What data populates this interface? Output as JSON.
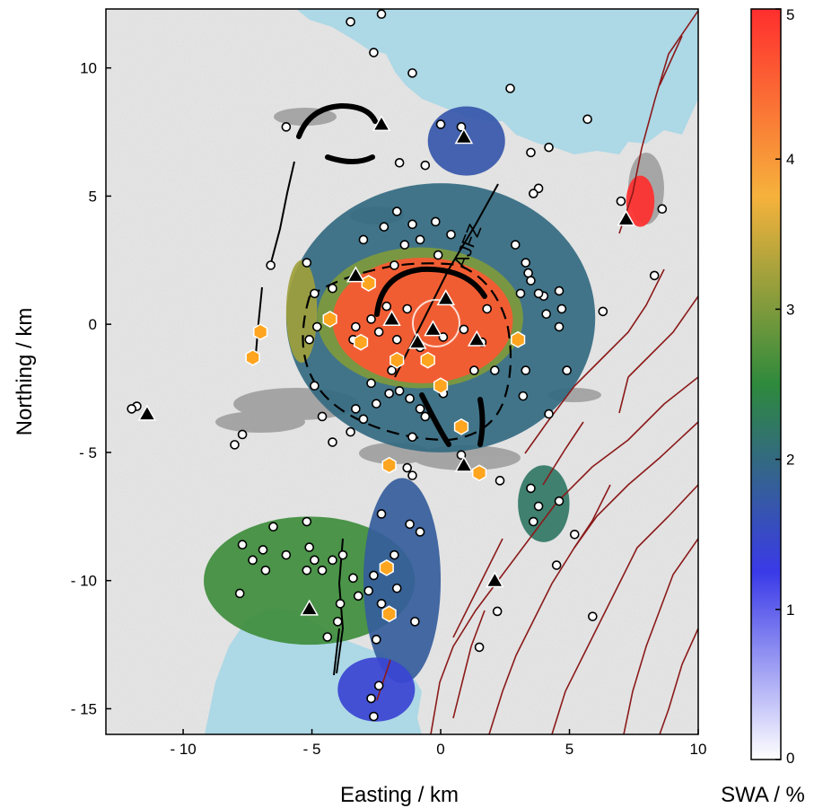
{
  "chart_data": {
    "type": "heatmap",
    "xlabel": "Easting / km",
    "ylabel": "Northing / km",
    "xlim": [
      -13,
      10
    ],
    "ylim": [
      -16,
      12.3
    ],
    "x_ticks": [
      {
        "value": -10,
        "label": "- 10"
      },
      {
        "value": -5,
        "label": "- 5"
      },
      {
        "value": 0,
        "label": "0"
      },
      {
        "value": 5,
        "label": "5"
      },
      {
        "value": 10,
        "label": "10"
      }
    ],
    "y_ticks": [
      {
        "value": 10,
        "label": "10"
      },
      {
        "value": 5,
        "label": "5"
      },
      {
        "value": 0,
        "label": "0"
      },
      {
        "value": -5,
        "label": "- 5"
      },
      {
        "value": -10,
        "label": "- 10"
      },
      {
        "value": -15,
        "label": "- 15"
      }
    ],
    "colorbar": {
      "label": "SWA / %",
      "range": [
        0,
        5
      ],
      "ticks": [
        "0",
        "1",
        "2",
        "3",
        "4",
        "5"
      ],
      "stops": [
        "#ffffff",
        "#3a3ae8",
        "#2e8a3c",
        "#f6b23c",
        "#ff2e2e"
      ]
    },
    "annotations": [
      {
        "text": "AJFZ",
        "x": 1.1,
        "y": 3.2
      }
    ],
    "colors": {
      "water": "#add8e6",
      "faults": "#8b1a1a",
      "volcano_marker": "#000000",
      "hexagon_marker": "#ffa51f",
      "caldera_rim": "#000000"
    },
    "heat_patches": [
      {
        "x": [
          -6,
          6
        ],
        "y": [
          -5,
          5.5
        ],
        "swa": 2.0
      },
      {
        "x": [
          -4.8,
          3.2
        ],
        "y": [
          -2.5,
          3
        ],
        "swa": 3.0
      },
      {
        "x": [
          -4.2,
          2.8
        ],
        "y": [
          -2.3,
          2.6
        ],
        "swa": 4.6
      },
      {
        "x": [
          -9.2,
          -1
        ],
        "y": [
          -12.5,
          -7.5
        ],
        "swa": 2.6
      },
      {
        "x": [
          -3,
          0
        ],
        "y": [
          -14,
          -6
        ],
        "swa": 1.8
      },
      {
        "x": [
          3,
          5
        ],
        "y": [
          -8.5,
          -5.5
        ],
        "swa": 2.2
      },
      {
        "x": [
          -0.5,
          2.5
        ],
        "y": [
          5.8,
          8.5
        ],
        "swa": 1.7
      },
      {
        "x": [
          -4,
          -1
        ],
        "y": [
          -15.5,
          -13
        ],
        "swa": 1.4
      },
      {
        "x": [
          7.2,
          8.3
        ],
        "y": [
          3.8,
          5.8
        ],
        "swa": 5.0
      },
      {
        "x": [
          -6,
          -4.8
        ],
        "y": [
          -1.5,
          2.5
        ],
        "swa": 3.2
      }
    ],
    "stations": [
      [
        -3.5,
        11.8
      ],
      [
        -2.3,
        12.1
      ],
      [
        -2.6,
        10.6
      ],
      [
        -1.1,
        9.8
      ],
      [
        2.7,
        9.2
      ],
      [
        0,
        7.8
      ],
      [
        0.8,
        7.7
      ],
      [
        -0.6,
        6.2
      ],
      [
        -1.6,
        6.3
      ],
      [
        -6,
        7.7
      ],
      [
        3.5,
        6.7
      ],
      [
        4.2,
        6.9
      ],
      [
        3.8,
        5.3
      ],
      [
        3.6,
        5.1
      ],
      [
        7,
        4.8
      ],
      [
        8.6,
        4.5
      ],
      [
        5.7,
        8.0
      ],
      [
        -1.7,
        4.4
      ],
      [
        -1.1,
        3.9
      ],
      [
        -0.8,
        3.3
      ],
      [
        -0.2,
        4.0
      ],
      [
        0.4,
        3.5
      ],
      [
        -1.4,
        3.1
      ],
      [
        -2.2,
        3.8
      ],
      [
        -3,
        3.3
      ],
      [
        -6.6,
        2.3
      ],
      [
        -5.2,
        2.4
      ],
      [
        -4.9,
        1.2
      ],
      [
        -1.8,
        2.3
      ],
      [
        -0.1,
        2.7
      ],
      [
        2.9,
        3.1
      ],
      [
        3.3,
        2.4
      ],
      [
        3.4,
        2.0
      ],
      [
        3.5,
        1.7
      ],
      [
        4.0,
        1.1
      ],
      [
        4.6,
        1.3
      ],
      [
        3.1,
        1.2
      ],
      [
        3.8,
        1.2
      ],
      [
        4.1,
        0.4
      ],
      [
        4.7,
        0.6
      ],
      [
        4.6,
        -0.1
      ],
      [
        6.3,
        0.5
      ],
      [
        8.3,
        1.9
      ],
      [
        -1.3,
        0.6
      ],
      [
        -2.1,
        0.7
      ],
      [
        -2.7,
        0.2
      ],
      [
        -3.3,
        -0.1
      ],
      [
        -4.8,
        -0.1
      ],
      [
        -5.1,
        -0.6
      ],
      [
        -4.9,
        -2.4
      ],
      [
        -3.4,
        -0.6
      ],
      [
        -2.4,
        -0.3
      ],
      [
        -1.7,
        -0.6
      ],
      [
        -0.8,
        -0.9
      ],
      [
        0.1,
        -0.5
      ],
      [
        0.9,
        -0.2
      ],
      [
        1.6,
        -0.7
      ],
      [
        1.8,
        0.6
      ],
      [
        -0.5,
        -1.5
      ],
      [
        -1.9,
        -1.8
      ],
      [
        -2.7,
        -2.3
      ],
      [
        -2.0,
        -2.7
      ],
      [
        -2.5,
        -3.1
      ],
      [
        -3.3,
        -3.3
      ],
      [
        -3.0,
        -3.7
      ],
      [
        -3.5,
        -4.2
      ],
      [
        -1.6,
        -2.6
      ],
      [
        -1.2,
        -2.9
      ],
      [
        -0.8,
        -3.3
      ],
      [
        -0.6,
        -3.6
      ],
      [
        0.1,
        -2.7
      ],
      [
        1.3,
        -1.8
      ],
      [
        2.1,
        -1.8
      ],
      [
        3.3,
        -1.8
      ],
      [
        4.9,
        -1.8
      ],
      [
        3.2,
        -2.8
      ],
      [
        4.2,
        -3.5
      ],
      [
        -4.2,
        -4.6
      ],
      [
        -4.6,
        -3.6
      ],
      [
        -1.1,
        -4.4
      ],
      [
        0.8,
        -5.1
      ],
      [
        2.3,
        -6.1
      ],
      [
        3.5,
        -6.4
      ],
      [
        3.8,
        -7.1
      ],
      [
        4.6,
        -6.9
      ],
      [
        3.6,
        -7.7
      ],
      [
        5.2,
        -8.2
      ],
      [
        4.5,
        -9.4
      ],
      [
        5.9,
        -11.4
      ],
      [
        -1.1,
        -5.9
      ],
      [
        -1.3,
        -5.6
      ],
      [
        -2.3,
        -7.4
      ],
      [
        -1.2,
        -7.8
      ],
      [
        -0.8,
        -8.1
      ],
      [
        -5.2,
        -7.7
      ],
      [
        -6.5,
        -7.9
      ],
      [
        -7.7,
        -8.6
      ],
      [
        -6.9,
        -8.8
      ],
      [
        -7.3,
        -9.2
      ],
      [
        -6.8,
        -9.6
      ],
      [
        -6.0,
        -9.0
      ],
      [
        -5.1,
        -8.7
      ],
      [
        -4.9,
        -9.2
      ],
      [
        -5.2,
        -9.6
      ],
      [
        -4.6,
        -9.6
      ],
      [
        -4.2,
        -9.2
      ],
      [
        -3.8,
        -9.0
      ],
      [
        -3.4,
        -9.9
      ],
      [
        -2.6,
        -9.8
      ],
      [
        -3.2,
        -10.6
      ],
      [
        -2.8,
        -10.4
      ],
      [
        -1.8,
        -9.0
      ],
      [
        -1.7,
        -10.3
      ],
      [
        -2.3,
        -10.9
      ],
      [
        -3.9,
        -10.9
      ],
      [
        -4.0,
        -11.6
      ],
      [
        -4.4,
        -12.2
      ],
      [
        -2.5,
        -12.3
      ],
      [
        -1.0,
        -11.6
      ],
      [
        2.2,
        -11.2
      ],
      [
        -7.8,
        -10.5
      ],
      [
        -7.7,
        -4.3
      ],
      [
        -8.0,
        -4.7
      ],
      [
        -11.8,
        -3.2
      ],
      [
        -12.0,
        -3.3
      ],
      [
        -2.4,
        -14.1
      ],
      [
        -2.7,
        -14.6
      ],
      [
        -2.6,
        -15.3
      ],
      [
        1.5,
        -12.6
      ],
      [
        -4.2,
        1.4
      ]
    ],
    "volcanoes": [
      [
        -2.3,
        7.8
      ],
      [
        0.9,
        7.3
      ],
      [
        7.2,
        4.1
      ],
      [
        -3.3,
        1.9
      ],
      [
        0.2,
        1.0
      ],
      [
        -1.9,
        0.2
      ],
      [
        -0.3,
        -0.2
      ],
      [
        1.4,
        -0.6
      ],
      [
        -0.9,
        -0.7
      ],
      [
        -11.4,
        -3.5
      ],
      [
        0.9,
        -5.5
      ],
      [
        2.1,
        -10.0
      ],
      [
        -5.1,
        -11.1
      ]
    ],
    "hexagons": [
      [
        -2.8,
        1.6
      ],
      [
        -4.3,
        0.2
      ],
      [
        -7.0,
        -0.3
      ],
      [
        -7.3,
        -1.3
      ],
      [
        -3.1,
        -0.7
      ],
      [
        -1.7,
        -1.4
      ],
      [
        -0.5,
        -1.4
      ],
      [
        3.0,
        -0.6
      ],
      [
        0.0,
        -2.4
      ],
      [
        0.8,
        -4.0
      ],
      [
        -2.0,
        -5.5
      ],
      [
        1.5,
        -5.8
      ],
      [
        -2.1,
        -9.5
      ],
      [
        -2.0,
        -11.3
      ]
    ]
  }
}
